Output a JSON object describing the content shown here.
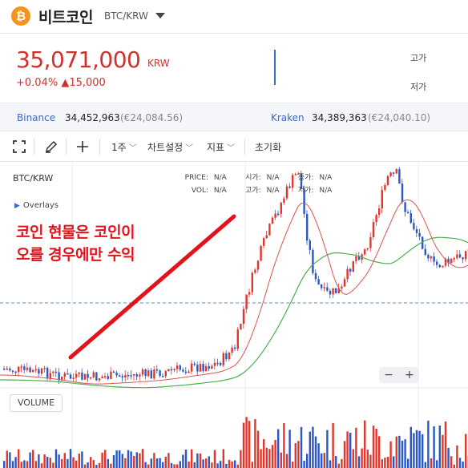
{
  "coin": {
    "symbol_glyph": "₿",
    "name": "비트코인",
    "pair": "BTC/KRW",
    "logo_color": "#f7931a"
  },
  "price": {
    "value": "35,071,000",
    "unit": "KRW",
    "change": "+0.04% ▲15,000",
    "high_label": "고가",
    "low_label": "저가"
  },
  "exchanges": [
    {
      "name": "Binance",
      "price": "34,452,963",
      "eur": "(€24,084.56)"
    },
    {
      "name": "Kraken",
      "price": "34,389,363",
      "eur": "(€24,040.10)"
    }
  ],
  "toolbar": {
    "period": "1주",
    "chart_settings": "차트설정",
    "indicators": "지표",
    "reset": "초기화",
    "icons": [
      "fullscreen-icon",
      "draw-pencil-icon",
      "crosshair-icon"
    ]
  },
  "chart": {
    "symbol": "BTC/KRW",
    "overlays": "Overlays",
    "info": {
      "price_label": "PRICE:",
      "price_val": "N/A",
      "open_label": "시가:",
      "open_val": "N/A",
      "close_label": "종가:",
      "close_val": "N/A",
      "vol_label": "VOL:",
      "vol_val": "N/A",
      "high_label": "고가:",
      "high_val": "N/A",
      "low_label": "저가:",
      "low_val": "N/A"
    },
    "annotation_line1": "코인 현물은 코인이",
    "annotation_line2": "오를 경우에만 수익",
    "volume_label": "VOLUME",
    "zoom_out": "−",
    "zoom_in": "+",
    "colors": {
      "up": "#e0362c",
      "down": "#2a56c6",
      "ma_short": "#d9534f",
      "ma_long": "#4caf50",
      "annotation": "#e3131b"
    }
  }
}
